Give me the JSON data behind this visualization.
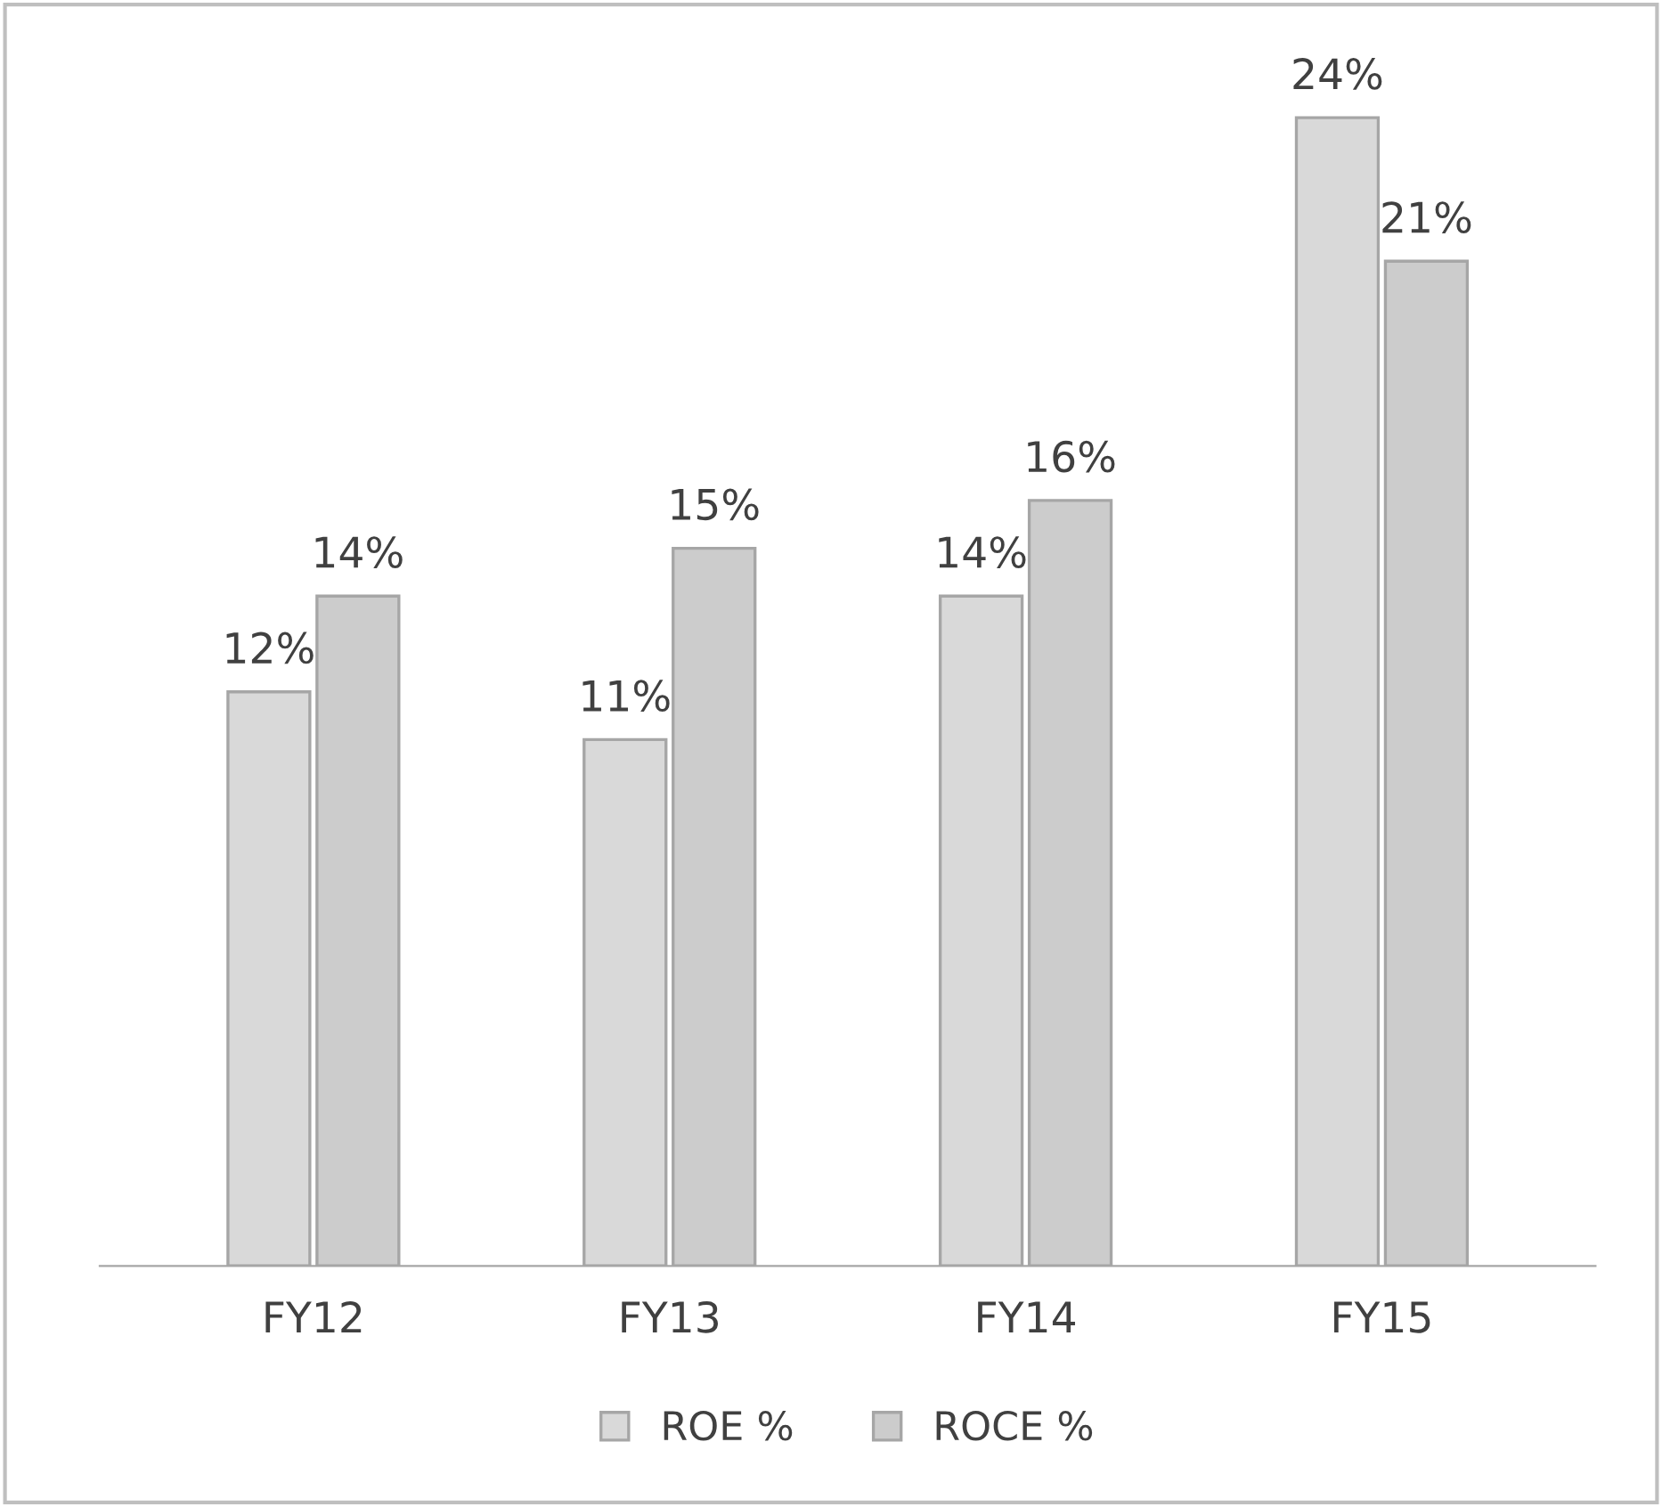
{
  "chart_data": {
    "type": "bar",
    "categories": [
      "FY12",
      "FY13",
      "FY14",
      "FY15"
    ],
    "series": [
      {
        "name": "ROE %",
        "color": "#d9d9d9",
        "values": [
          12,
          11,
          14,
          24
        ],
        "value_labels": [
          "12%",
          "11%",
          "14%",
          "24%"
        ]
      },
      {
        "name": "ROCE %",
        "color": "#cccccc",
        "values": [
          14,
          15,
          16,
          21
        ],
        "value_labels": [
          "14%",
          "15%",
          "16%",
          "21%"
        ]
      }
    ],
    "tick_labels": "x",
    "grid": false,
    "legend": "bottom"
  }
}
